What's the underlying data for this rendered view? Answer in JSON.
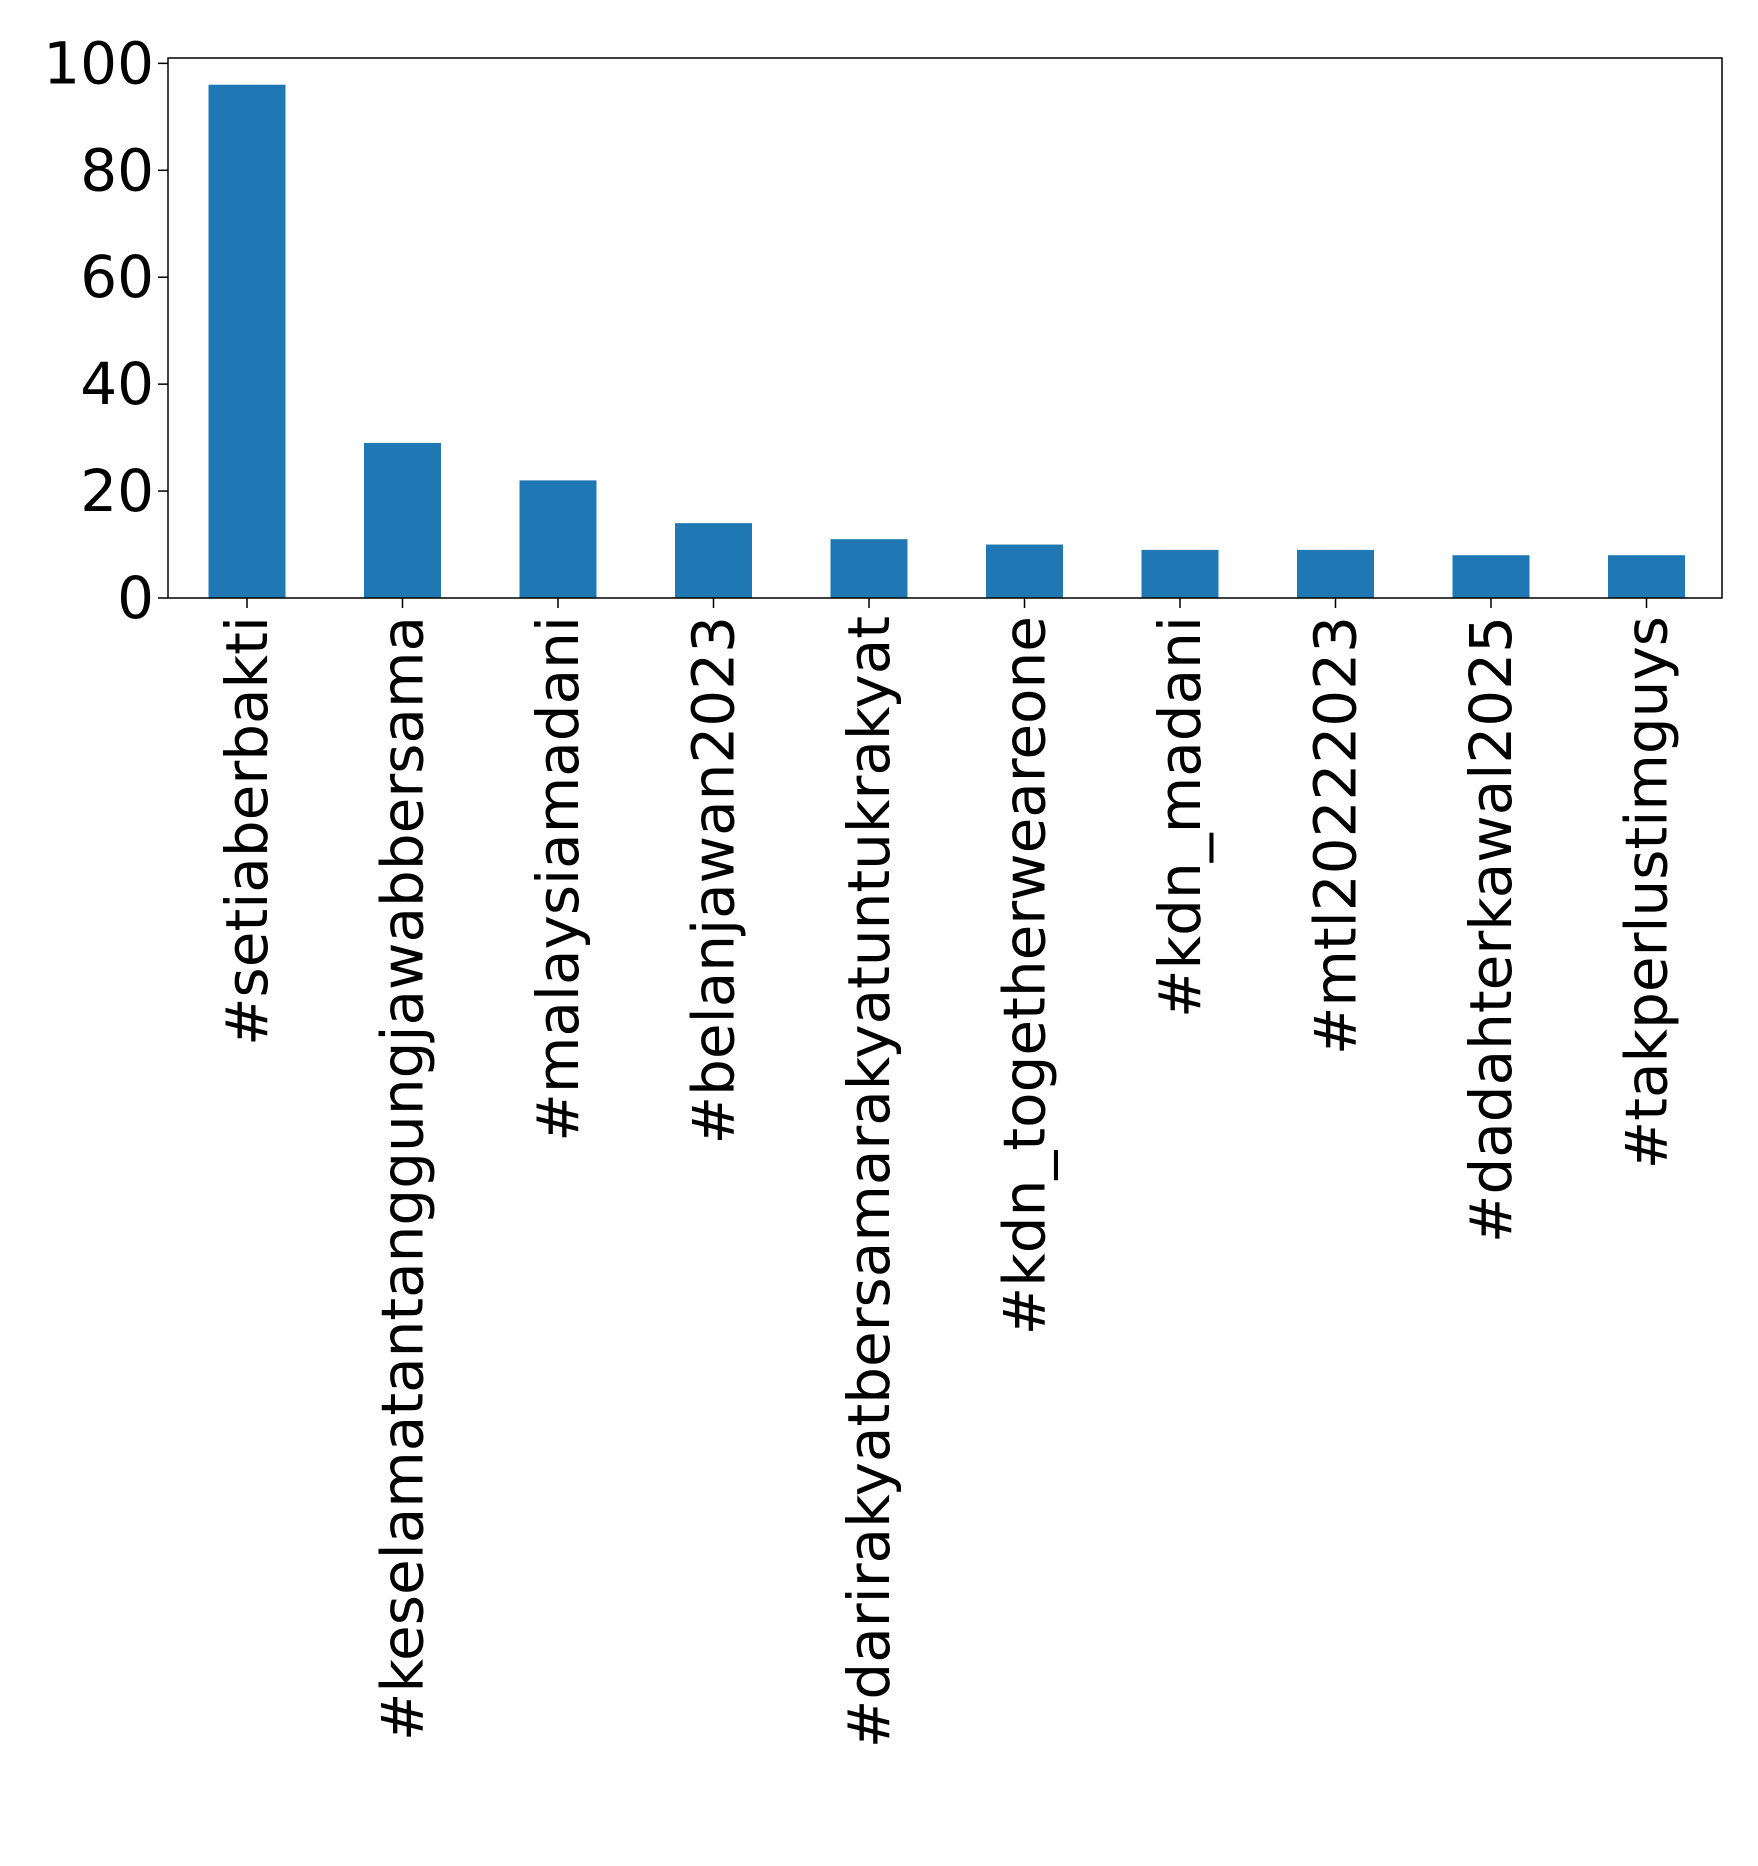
{
  "chart_data": {
    "type": "bar",
    "title": "",
    "xlabel": "",
    "ylabel": "",
    "categories": [
      "#setiaberbakti",
      "#keselamatantanggungjawabbersama",
      "#malaysiamadani",
      "#belanjawan2023",
      "#darirakyatbersamarakyatuntukrakyat",
      "#kdn_togetherweareone",
      "#kdn_madani",
      "#mtl20222023",
      "#dadahterkawal2025",
      "#takperlustimguys"
    ],
    "values": [
      96,
      29,
      22,
      14,
      11,
      10,
      9,
      9,
      8,
      8
    ],
    "ylim": [
      0,
      101
    ],
    "yticks": [
      "0",
      "20",
      "40",
      "60",
      "80",
      "100"
    ],
    "grid": false,
    "legend": "none",
    "bar_color": "#1f77b4"
  }
}
